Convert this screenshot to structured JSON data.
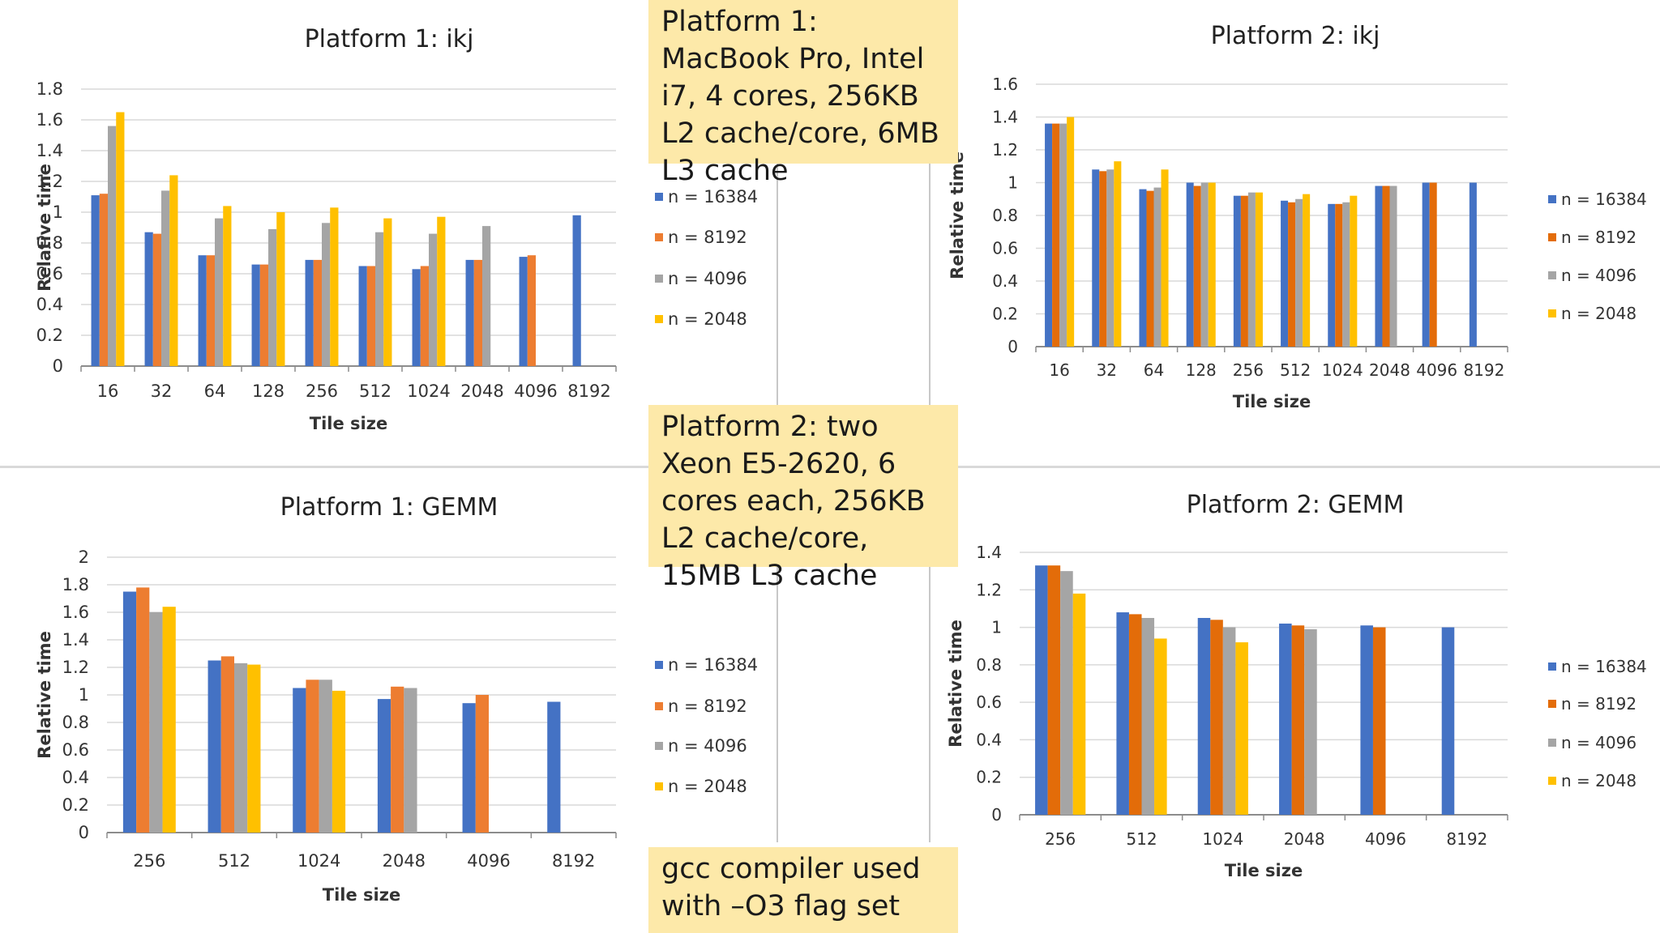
{
  "notes": {
    "platform1": "Platform 1: MacBook Pro, Intel i7, 4 cores, 256KB L2 cache/core, 6MB L3 cache",
    "platform2": "Platform 2: two Xeon E5-2620, 6 cores each, 256KB L2 cache/core, 15MB L3 cache",
    "compiler": "gcc compiler used with –O3 flag set"
  },
  "chart_data": [
    {
      "type": "bar",
      "title": "Platform 1: ikj",
      "xlabel": "Tile size",
      "ylabel": "Relative time",
      "ylim": [
        0,
        1.8
      ],
      "yticks": [
        0,
        0.2,
        0.4,
        0.6,
        0.8,
        1,
        1.2,
        1.4,
        1.6,
        1.8
      ],
      "grid": true,
      "legend": "right",
      "categories": [
        "16",
        "32",
        "64",
        "128",
        "256",
        "512",
        "1024",
        "2048",
        "4096",
        "8192"
      ],
      "series": [
        {
          "name": "n = 16384",
          "color": "#4472c4",
          "values": [
            1.11,
            0.87,
            0.72,
            0.66,
            0.69,
            0.65,
            0.63,
            0.69,
            0.71,
            0.98
          ]
        },
        {
          "name": "n = 8192",
          "color": "#ed7d31",
          "values": [
            1.12,
            0.86,
            0.72,
            0.66,
            0.69,
            0.65,
            0.65,
            0.69,
            0.72,
            null
          ]
        },
        {
          "name": "n = 4096",
          "color": "#a5a5a5",
          "values": [
            1.56,
            1.14,
            0.96,
            0.89,
            0.93,
            0.87,
            0.86,
            0.91,
            null,
            null
          ]
        },
        {
          "name": "n = 2048",
          "color": "#ffc000",
          "values": [
            1.65,
            1.24,
            1.04,
            1.0,
            1.03,
            0.96,
            0.97,
            null,
            null,
            null
          ]
        }
      ]
    },
    {
      "type": "bar",
      "title": "Platform 2: ikj",
      "xlabel": "Tile size",
      "ylabel": "Relative time",
      "ylim": [
        0,
        1.6
      ],
      "yticks": [
        0,
        0.2,
        0.4,
        0.6,
        0.8,
        1,
        1.2,
        1.4,
        1.6
      ],
      "grid": true,
      "legend": "right",
      "categories": [
        "16",
        "32",
        "64",
        "128",
        "256",
        "512",
        "1024",
        "2048",
        "4096",
        "8192"
      ],
      "series": [
        {
          "name": "n = 16384",
          "color": "#4472c4",
          "values": [
            1.36,
            1.08,
            0.96,
            1.0,
            0.92,
            0.89,
            0.87,
            0.98,
            1.0,
            1.0
          ]
        },
        {
          "name": "n = 8192",
          "color": "#e36c09",
          "values": [
            1.36,
            1.07,
            0.95,
            0.98,
            0.92,
            0.88,
            0.87,
            0.98,
            1.0,
            null
          ]
        },
        {
          "name": "n = 4096",
          "color": "#a5a5a5",
          "values": [
            1.36,
            1.08,
            0.97,
            1.0,
            0.94,
            0.9,
            0.88,
            0.98,
            null,
            null
          ]
        },
        {
          "name": "n = 2048",
          "color": "#ffc000",
          "values": [
            1.4,
            1.13,
            1.08,
            1.0,
            0.94,
            0.93,
            0.92,
            null,
            null,
            null
          ]
        }
      ]
    },
    {
      "type": "bar",
      "title": "Platform 1: GEMM",
      "xlabel": "Tile size",
      "ylabel": "Relative time",
      "ylim": [
        0,
        2
      ],
      "yticks": [
        0,
        0.2,
        0.4,
        0.6,
        0.8,
        1,
        1.2,
        1.4,
        1.6,
        1.8,
        2
      ],
      "grid": true,
      "legend": "right",
      "categories": [
        "256",
        "512",
        "1024",
        "2048",
        "4096",
        "8192"
      ],
      "series": [
        {
          "name": "n = 16384",
          "color": "#4472c4",
          "values": [
            1.75,
            1.25,
            1.05,
            0.97,
            0.94,
            0.95
          ]
        },
        {
          "name": "n = 8192",
          "color": "#ed7d31",
          "values": [
            1.78,
            1.28,
            1.11,
            1.06,
            1.0,
            null
          ]
        },
        {
          "name": "n = 4096",
          "color": "#a5a5a5",
          "values": [
            1.6,
            1.23,
            1.11,
            1.05,
            null,
            null
          ]
        },
        {
          "name": "n = 2048",
          "color": "#ffc000",
          "values": [
            1.64,
            1.22,
            1.03,
            null,
            null,
            null
          ]
        }
      ]
    },
    {
      "type": "bar",
      "title": "Platform 2: GEMM",
      "xlabel": "Tile size",
      "ylabel": "Relative time",
      "ylim": [
        0,
        1.4
      ],
      "yticks": [
        0,
        0.2,
        0.4,
        0.6,
        0.8,
        1,
        1.2,
        1.4
      ],
      "grid": true,
      "legend": "right",
      "categories": [
        "256",
        "512",
        "1024",
        "2048",
        "4096",
        "8192"
      ],
      "series": [
        {
          "name": "n = 16384",
          "color": "#4472c4",
          "values": [
            1.33,
            1.08,
            1.05,
            1.02,
            1.01,
            1.0
          ]
        },
        {
          "name": "n = 8192",
          "color": "#e36c09",
          "values": [
            1.33,
            1.07,
            1.04,
            1.01,
            1.0,
            null
          ]
        },
        {
          "name": "n = 4096",
          "color": "#a5a5a5",
          "values": [
            1.3,
            1.05,
            1.0,
            0.99,
            null,
            null
          ]
        },
        {
          "name": "n = 2048",
          "color": "#ffc000",
          "values": [
            1.18,
            0.94,
            0.92,
            null,
            null,
            null
          ]
        }
      ]
    }
  ]
}
